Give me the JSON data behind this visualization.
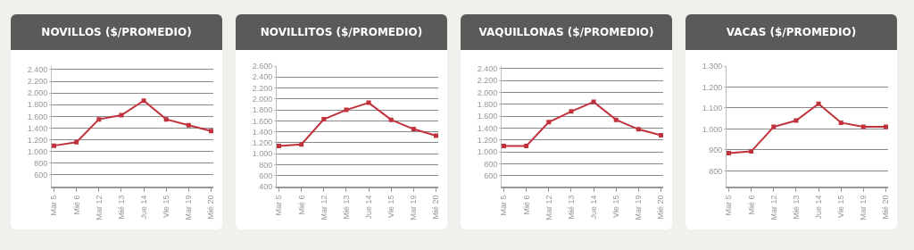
{
  "chart_data": [
    {
      "type": "line",
      "title": "NOVILLOS ($/PROMEDIO)",
      "categories": [
        "Mar 5",
        "Mié 6",
        "Mar 12",
        "Mié 13",
        "Jue 14",
        "Vie 15",
        "Mar 19",
        "Mié 20"
      ],
      "series": [
        {
          "color": "#c0323c",
          "values": [
            1100,
            1160,
            1550,
            1620,
            1870,
            1550,
            1450,
            1350
          ]
        }
      ],
      "ylim": [
        400,
        2460
      ],
      "yticks": [
        {
          "value": 600,
          "label": "600"
        },
        {
          "value": 800,
          "label": "800"
        },
        {
          "value": 1000,
          "label": "1.000"
        },
        {
          "value": 1200,
          "label": "1.200"
        },
        {
          "value": 1400,
          "label": "1.400"
        },
        {
          "value": 1600,
          "label": "1.600"
        },
        {
          "value": 1800,
          "label": "1.800"
        },
        {
          "value": 2000,
          "label": "2.000"
        },
        {
          "value": 2200,
          "label": "2.200"
        },
        {
          "value": 2400,
          "label": "2.400"
        }
      ],
      "grid": "y",
      "marker": "square",
      "line_style": "solid"
    },
    {
      "type": "line",
      "title": "NOVILLITOS ($/PROMEDIO)",
      "categories": [
        "Mar 5",
        "Mié 6",
        "Mar 12",
        "Mié 13",
        "Jue 14",
        "Vie 15",
        "Mar 19",
        "Mié 20"
      ],
      "series": [
        {
          "color": "#c0323c",
          "values": [
            1140,
            1170,
            1630,
            1800,
            1930,
            1620,
            1450,
            1330
          ]
        }
      ],
      "ylim": [
        400,
        2600
      ],
      "yticks": [
        {
          "value": 400,
          "label": "400"
        },
        {
          "value": 600,
          "label": "600"
        },
        {
          "value": 800,
          "label": "800"
        },
        {
          "value": 1000,
          "label": "1.000"
        },
        {
          "value": 1200,
          "label": "1.200"
        },
        {
          "value": 1400,
          "label": "1.400"
        },
        {
          "value": 1600,
          "label": "1.600"
        },
        {
          "value": 1800,
          "label": "1.800"
        },
        {
          "value": 2000,
          "label": "2.000"
        },
        {
          "value": 2200,
          "label": "2.200"
        },
        {
          "value": 2400,
          "label": "2.400"
        },
        {
          "value": 2600,
          "label": "2.600"
        }
      ],
      "grid": "y",
      "marker": "square",
      "line_style": "solid"
    },
    {
      "type": "line",
      "title": "VAQUILLONAS ($/PROMEDIO)",
      "categories": [
        "Mar 5",
        "Mié 6",
        "Mar 12",
        "Mié 13",
        "Jue 14",
        "Vie 15",
        "Mar 19",
        "Mié 20"
      ],
      "series": [
        {
          "color": "#c0323c",
          "values": [
            1100,
            1100,
            1500,
            1680,
            1840,
            1540,
            1380,
            1280
          ]
        }
      ],
      "ylim": [
        420,
        2440
      ],
      "yticks": [
        {
          "value": 600,
          "label": "600"
        },
        {
          "value": 800,
          "label": "800"
        },
        {
          "value": 1000,
          "label": "1.000"
        },
        {
          "value": 1200,
          "label": "1.200"
        },
        {
          "value": 1400,
          "label": "1.400"
        },
        {
          "value": 1600,
          "label": "1.600"
        },
        {
          "value": 1800,
          "label": "1.800"
        },
        {
          "value": 2000,
          "label": "2.000"
        },
        {
          "value": 2200,
          "label": "2.200"
        },
        {
          "value": 2400,
          "label": "2.400"
        }
      ],
      "grid": "y",
      "marker": "square",
      "line_style": "solid"
    },
    {
      "type": "line",
      "title": "VACAS ($/PROMEDIO)",
      "categories": [
        "Mar 5",
        "Mié 6",
        "Mar 12",
        "Mié 13",
        "Jue 14",
        "Vie 15",
        "Mar 19",
        "Mié 20"
      ],
      "series": [
        {
          "color": "#c0323c",
          "values": [
            885,
            893,
            1010,
            1040,
            1120,
            1030,
            1010,
            1010
          ]
        }
      ],
      "ylim": [
        725,
        1300
      ],
      "yticks": [
        {
          "value": 800,
          "label": "800"
        },
        {
          "value": 900,
          "label": "900"
        },
        {
          "value": 1000,
          "label": "1.000"
        },
        {
          "value": 1100,
          "label": "1.100"
        },
        {
          "value": 1200,
          "label": "1.200"
        },
        {
          "value": 1300,
          "label": "1.300"
        }
      ],
      "grid": "y",
      "marker": "square",
      "line_style": "solid"
    }
  ]
}
